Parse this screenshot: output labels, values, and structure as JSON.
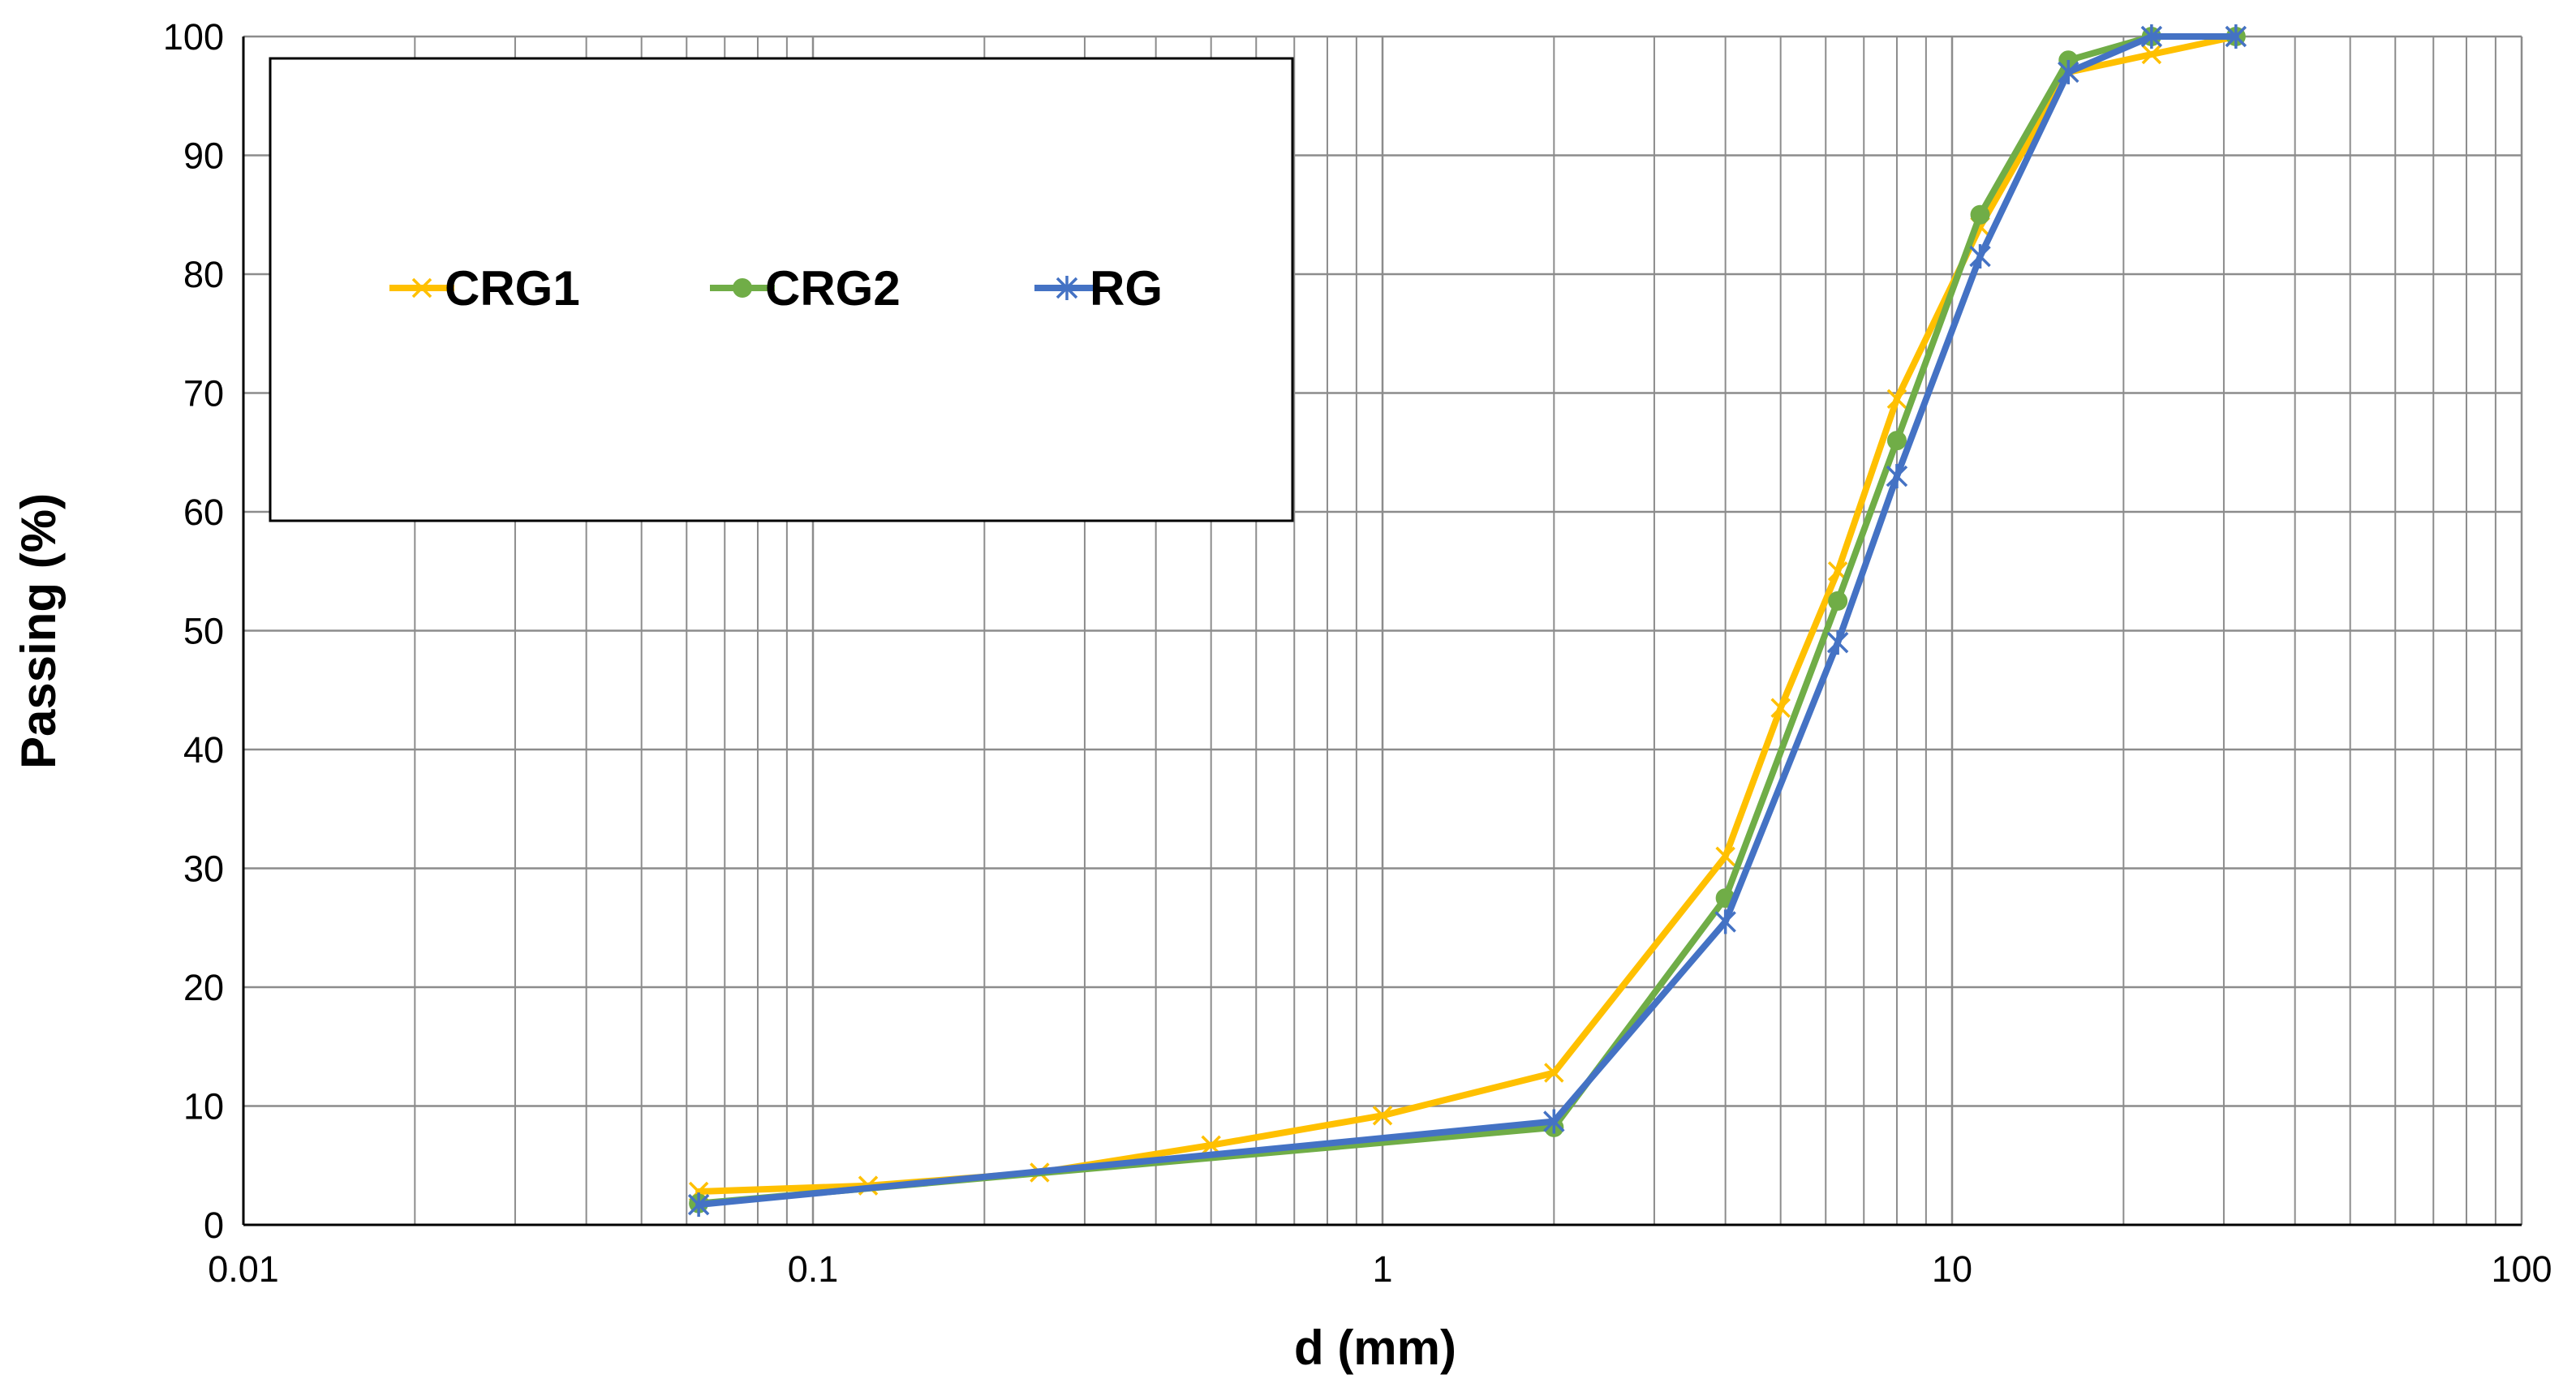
{
  "chart_data": {
    "type": "line",
    "x_scale": "log",
    "xlabel": "d (mm)",
    "ylabel": "Passing (%)",
    "xlim": [
      0.01,
      100
    ],
    "ylim": [
      0,
      100
    ],
    "x_ticks": [
      "0.01",
      "0.1",
      "1",
      "10",
      "100"
    ],
    "y_ticks": [
      "0",
      "10",
      "20",
      "30",
      "40",
      "50",
      "60",
      "70",
      "80",
      "90",
      "100"
    ],
    "grid": true,
    "legend_position": "top-left",
    "series": [
      {
        "name": "CRG1",
        "color": "#FFC000",
        "marker": "x",
        "x": [
          0.063,
          0.125,
          0.25,
          0.5,
          1,
          2,
          4,
          5,
          6.3,
          8,
          11.2,
          16,
          22.4,
          31.5
        ],
        "y": [
          2.8,
          3.3,
          4.4,
          6.7,
          9.2,
          12.8,
          31,
          43.5,
          55,
          69.5,
          84,
          97,
          98.5,
          100
        ]
      },
      {
        "name": "CRG2",
        "color": "#70AD47",
        "marker": "circle",
        "x": [
          0.063,
          2,
          4,
          6.3,
          8,
          11.2,
          16,
          22.4,
          31.5
        ],
        "y": [
          1.8,
          8.2,
          27.5,
          52.5,
          66,
          85,
          98,
          100,
          100
        ]
      },
      {
        "name": "RG",
        "color": "#4472C4",
        "marker": "asterisk",
        "x": [
          0.063,
          2,
          4,
          6.3,
          8,
          11.2,
          16,
          22.4,
          31.5
        ],
        "y": [
          1.7,
          8.7,
          25.5,
          49,
          63,
          81.5,
          97,
          100,
          100
        ]
      }
    ]
  }
}
